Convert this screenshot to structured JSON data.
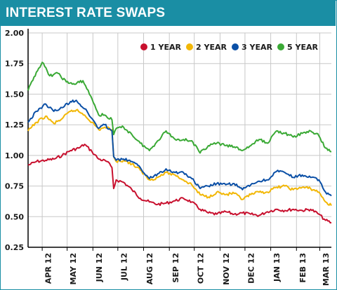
{
  "header": {
    "title": "INTEREST RATE SWAPS"
  },
  "colors": {
    "header_bg": "#1a8ea4",
    "grid": "#c8c8c8",
    "axis": "#000000"
  },
  "chart_data": {
    "type": "line",
    "title": "INTEREST RATE SWAPS",
    "xlabel": "",
    "ylabel": "",
    "ylim": [
      0.25,
      2.0
    ],
    "y_ticks": [
      "0.25",
      "0.50",
      "0.75",
      "1.00",
      "1.25",
      "1.50",
      "1.75",
      "2.00"
    ],
    "x_tick_labels": [
      "APR 12",
      "MAY 12",
      "JUN 12",
      "JUL 12",
      "AUG 12",
      "SEP 12",
      "OCT 12",
      "NOV 12",
      "DEC 12",
      "JAN 13",
      "FEB 13",
      "MAR 13"
    ],
    "x_range": [
      "2012-03-15",
      "2013-03-15"
    ],
    "legend_position": "top-right",
    "grid": true,
    "series": [
      {
        "name": "1 YEAR",
        "color": "#c8102e",
        "points": [
          [
            "2012-03-15",
            0.92
          ],
          [
            "2012-03-25",
            0.95
          ],
          [
            "2012-04-05",
            0.96
          ],
          [
            "2012-04-15",
            0.97
          ],
          [
            "2012-04-25",
            1.0
          ],
          [
            "2012-05-05",
            1.04
          ],
          [
            "2012-05-15",
            1.06
          ],
          [
            "2012-05-22",
            1.09
          ],
          [
            "2012-05-31",
            1.03
          ],
          [
            "2012-06-08",
            0.97
          ],
          [
            "2012-06-18",
            0.95
          ],
          [
            "2012-06-24",
            0.9
          ],
          [
            "2012-06-26",
            0.73
          ],
          [
            "2012-06-29",
            0.8
          ],
          [
            "2012-07-08",
            0.78
          ],
          [
            "2012-07-18",
            0.72
          ],
          [
            "2012-07-28",
            0.65
          ],
          [
            "2012-08-08",
            0.62
          ],
          [
            "2012-08-18",
            0.6
          ],
          [
            "2012-08-28",
            0.61
          ],
          [
            "2012-09-08",
            0.63
          ],
          [
            "2012-09-18",
            0.65
          ],
          [
            "2012-09-28",
            0.62
          ],
          [
            "2012-10-08",
            0.56
          ],
          [
            "2012-10-18",
            0.53
          ],
          [
            "2012-10-28",
            0.52
          ],
          [
            "2012-11-08",
            0.54
          ],
          [
            "2012-11-18",
            0.52
          ],
          [
            "2012-11-28",
            0.53
          ],
          [
            "2012-12-08",
            0.52
          ],
          [
            "2012-12-18",
            0.51
          ],
          [
            "2012-12-28",
            0.54
          ],
          [
            "2013-01-08",
            0.56
          ],
          [
            "2013-01-18",
            0.55
          ],
          [
            "2013-01-28",
            0.56
          ],
          [
            "2013-02-08",
            0.55
          ],
          [
            "2013-02-18",
            0.56
          ],
          [
            "2013-02-28",
            0.52
          ],
          [
            "2013-03-08",
            0.47
          ],
          [
            "2013-03-15",
            0.45
          ]
        ]
      },
      {
        "name": "2 YEAR",
        "color": "#f2b705",
        "points": [
          [
            "2012-03-15",
            1.2
          ],
          [
            "2012-03-25",
            1.27
          ],
          [
            "2012-04-05",
            1.32
          ],
          [
            "2012-04-15",
            1.26
          ],
          [
            "2012-04-25",
            1.3
          ],
          [
            "2012-05-05",
            1.36
          ],
          [
            "2012-05-12",
            1.37
          ],
          [
            "2012-05-22",
            1.33
          ],
          [
            "2012-05-31",
            1.27
          ],
          [
            "2012-06-08",
            1.21
          ],
          [
            "2012-06-15",
            1.23
          ],
          [
            "2012-06-24",
            1.21
          ],
          [
            "2012-06-26",
            0.99
          ],
          [
            "2012-06-29",
            0.95
          ],
          [
            "2012-07-08",
            0.96
          ],
          [
            "2012-07-18",
            0.93
          ],
          [
            "2012-07-28",
            0.88
          ],
          [
            "2012-08-08",
            0.8
          ],
          [
            "2012-08-18",
            0.82
          ],
          [
            "2012-08-28",
            0.86
          ],
          [
            "2012-09-08",
            0.84
          ],
          [
            "2012-09-18",
            0.8
          ],
          [
            "2012-09-28",
            0.76
          ],
          [
            "2012-10-08",
            0.68
          ],
          [
            "2012-10-18",
            0.66
          ],
          [
            "2012-10-28",
            0.7
          ],
          [
            "2012-11-08",
            0.68
          ],
          [
            "2012-11-18",
            0.69
          ],
          [
            "2012-11-28",
            0.64
          ],
          [
            "2012-12-08",
            0.68
          ],
          [
            "2012-12-18",
            0.7
          ],
          [
            "2012-12-28",
            0.7
          ],
          [
            "2013-01-08",
            0.74
          ],
          [
            "2013-01-18",
            0.75
          ],
          [
            "2013-01-28",
            0.72
          ],
          [
            "2013-02-08",
            0.74
          ],
          [
            "2013-02-18",
            0.73
          ],
          [
            "2013-02-28",
            0.7
          ],
          [
            "2013-03-08",
            0.62
          ],
          [
            "2013-03-15",
            0.59
          ]
        ]
      },
      {
        "name": "3 YEAR",
        "color": "#0a4fa6",
        "points": [
          [
            "2012-03-15",
            1.27
          ],
          [
            "2012-03-25",
            1.36
          ],
          [
            "2012-04-05",
            1.42
          ],
          [
            "2012-04-15",
            1.36
          ],
          [
            "2012-04-25",
            1.39
          ],
          [
            "2012-05-05",
            1.44
          ],
          [
            "2012-05-12",
            1.45
          ],
          [
            "2012-05-22",
            1.38
          ],
          [
            "2012-05-31",
            1.3
          ],
          [
            "2012-06-08",
            1.22
          ],
          [
            "2012-06-15",
            1.25
          ],
          [
            "2012-06-24",
            1.2
          ],
          [
            "2012-06-26",
            0.99
          ],
          [
            "2012-06-29",
            0.96
          ],
          [
            "2012-07-08",
            0.97
          ],
          [
            "2012-07-18",
            0.95
          ],
          [
            "2012-07-28",
            0.9
          ],
          [
            "2012-08-08",
            0.81
          ],
          [
            "2012-08-18",
            0.85
          ],
          [
            "2012-08-28",
            0.89
          ],
          [
            "2012-09-08",
            0.86
          ],
          [
            "2012-09-18",
            0.86
          ],
          [
            "2012-09-28",
            0.81
          ],
          [
            "2012-10-08",
            0.73
          ],
          [
            "2012-10-18",
            0.75
          ],
          [
            "2012-10-28",
            0.77
          ],
          [
            "2012-11-08",
            0.76
          ],
          [
            "2012-11-18",
            0.77
          ],
          [
            "2012-11-28",
            0.72
          ],
          [
            "2012-12-08",
            0.76
          ],
          [
            "2012-12-18",
            0.79
          ],
          [
            "2012-12-28",
            0.8
          ],
          [
            "2013-01-08",
            0.87
          ],
          [
            "2013-01-18",
            0.86
          ],
          [
            "2013-01-28",
            0.82
          ],
          [
            "2013-02-08",
            0.84
          ],
          [
            "2013-02-18",
            0.82
          ],
          [
            "2013-02-28",
            0.8
          ],
          [
            "2013-03-08",
            0.7
          ],
          [
            "2013-03-15",
            0.67
          ]
        ]
      },
      {
        "name": "5 YEAR",
        "color": "#3aa935",
        "points": [
          [
            "2012-03-15",
            1.53
          ],
          [
            "2012-03-25",
            1.68
          ],
          [
            "2012-04-01",
            1.76
          ],
          [
            "2012-04-10",
            1.65
          ],
          [
            "2012-04-20",
            1.67
          ],
          [
            "2012-04-30",
            1.6
          ],
          [
            "2012-05-10",
            1.58
          ],
          [
            "2012-05-20",
            1.61
          ],
          [
            "2012-05-31",
            1.46
          ],
          [
            "2012-06-08",
            1.33
          ],
          [
            "2012-06-15",
            1.33
          ],
          [
            "2012-06-24",
            1.29
          ],
          [
            "2012-06-26",
            1.17
          ],
          [
            "2012-06-29",
            1.22
          ],
          [
            "2012-07-08",
            1.23
          ],
          [
            "2012-07-18",
            1.17
          ],
          [
            "2012-07-28",
            1.1
          ],
          [
            "2012-08-08",
            1.04
          ],
          [
            "2012-08-18",
            1.12
          ],
          [
            "2012-08-28",
            1.2
          ],
          [
            "2012-09-08",
            1.13
          ],
          [
            "2012-09-18",
            1.13
          ],
          [
            "2012-09-28",
            1.12
          ],
          [
            "2012-10-08",
            1.02
          ],
          [
            "2012-10-18",
            1.08
          ],
          [
            "2012-10-28",
            1.1
          ],
          [
            "2012-11-08",
            1.08
          ],
          [
            "2012-11-18",
            1.07
          ],
          [
            "2012-11-28",
            1.04
          ],
          [
            "2012-12-08",
            1.08
          ],
          [
            "2012-12-18",
            1.13
          ],
          [
            "2012-12-28",
            1.1
          ],
          [
            "2013-01-08",
            1.2
          ],
          [
            "2013-01-18",
            1.18
          ],
          [
            "2013-01-28",
            1.15
          ],
          [
            "2013-02-08",
            1.18
          ],
          [
            "2013-02-18",
            1.2
          ],
          [
            "2013-02-28",
            1.16
          ],
          [
            "2013-03-08",
            1.06
          ],
          [
            "2013-03-15",
            1.03
          ]
        ]
      }
    ]
  }
}
